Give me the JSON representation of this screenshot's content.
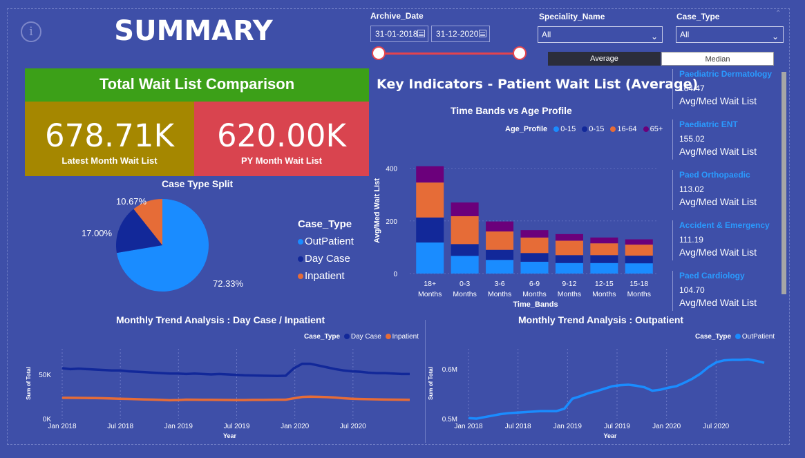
{
  "header": {
    "title": "SUMMARY"
  },
  "filters": {
    "archive_date_label": "Archive_Date",
    "start_date": "31-01-2018",
    "end_date": "31-12-2020",
    "speciality_label": "Speciality_Name",
    "speciality_value": "All",
    "case_type_label": "Case_Type",
    "case_type_value": "All",
    "toggle_average": "Average",
    "toggle_median": "Median"
  },
  "comparison": {
    "title": "Total Wait List Comparison",
    "latest_value": "678.71K",
    "latest_label": "Latest Month Wait List",
    "py_value": "620.00K",
    "py_label": "PY Month Wait List",
    "colors": {
      "header": "#3ca018",
      "latest": "#a58700",
      "py": "#d9444f"
    }
  },
  "key_indicators": {
    "title": "Key Indicators - Patient Wait List (Average)",
    "cards": [
      {
        "name": "Paediatric Dermatology",
        "value": "164.47",
        "label": "Avg/Med Wait List"
      },
      {
        "name": "Paediatric ENT",
        "value": "155.02",
        "label": "Avg/Med Wait List"
      },
      {
        "name": "Paed Orthopaedic",
        "value": "113.02",
        "label": "Avg/Med Wait List"
      },
      {
        "name": "Accident & Emergency",
        "value": "111.19",
        "label": "Avg/Med Wait List"
      },
      {
        "name": "Paed Cardiology",
        "value": "104.70",
        "label": "Avg/Med Wait List"
      }
    ]
  },
  "chart_data": [
    {
      "id": "pie",
      "type": "pie",
      "title": "Case Type Split",
      "legend_title": "Case_Type",
      "slices": [
        {
          "label": "OutPatient",
          "value": 72.33,
          "text": "72.33%",
          "color": "#1a8cff"
        },
        {
          "label": "Day Case",
          "value": 17.0,
          "text": "17.00%",
          "color": "#122899"
        },
        {
          "label": "Inpatient",
          "value": 10.67,
          "text": "10.67%",
          "color": "#e66c37"
        }
      ]
    },
    {
      "id": "bands",
      "type": "bar",
      "stacked": true,
      "title": "Time Bands vs Age Profile",
      "legend_title": "Age_Profile",
      "xlabel": "Time_Bands",
      "ylabel": "Avg/Med Wait List",
      "ylim": [
        0,
        420
      ],
      "yticks": [
        "0",
        "200",
        "400"
      ],
      "categories": [
        [
          "18+",
          "Months"
        ],
        [
          "0-3",
          "Months"
        ],
        [
          "3-6",
          "Months"
        ],
        [
          "6-9",
          "Months"
        ],
        [
          "9-12",
          "Months"
        ],
        [
          "12-15",
          "Months"
        ],
        [
          "15-18",
          "Months"
        ]
      ],
      "series": [
        {
          "name": "0-15",
          "color": "#1a8cff",
          "values": [
            118,
            67,
            52,
            45,
            40,
            40,
            39
          ]
        },
        {
          "name": "0-15",
          "color": "#122899",
          "values": [
            95,
            45,
            38,
            33,
            30,
            30,
            29
          ]
        },
        {
          "name": "16-64",
          "color": "#e66c37",
          "values": [
            133,
            106,
            70,
            59,
            55,
            45,
            42
          ]
        },
        {
          "name": "65+",
          "color": "#6b007b",
          "values": [
            62,
            52,
            38,
            28,
            25,
            22,
            20
          ]
        }
      ]
    },
    {
      "id": "trend_dc",
      "type": "line",
      "title": "Monthly Trend Analysis : Day Case / Inpatient",
      "legend_title": "Case_Type",
      "xlabel": "Year",
      "ylabel": "Sum of Total",
      "ylim": [
        0,
        75000
      ],
      "yticks": [
        "0K",
        "50K"
      ],
      "xticks": [
        "Jan 2018",
        "Jul 2018",
        "Jan 2019",
        "Jul 2019",
        "Jan 2020",
        "Jul 2020"
      ],
      "series": [
        {
          "name": "Day Case",
          "color": "#122899",
          "values": [
            57000,
            56000,
            56500,
            56000,
            55500,
            55000,
            54500,
            54500,
            53500,
            53000,
            52500,
            52000,
            51500,
            51000,
            51000,
            50500,
            51000,
            50500,
            50000,
            50500,
            50000,
            49500,
            49000,
            48800,
            48600,
            48400,
            48200,
            48500,
            57000,
            62000,
            62000,
            60000,
            58000,
            56000,
            54500,
            53500,
            53000,
            52000,
            51500,
            51500,
            51000,
            50500,
            50500
          ]
        },
        {
          "name": "Inpatient",
          "color": "#e66c37",
          "values": [
            23500,
            23500,
            23400,
            23300,
            23200,
            23000,
            22800,
            22500,
            22300,
            22000,
            21700,
            21500,
            21200,
            20800,
            21000,
            21500,
            21400,
            21300,
            21300,
            21200,
            21100,
            21000,
            21000,
            21200,
            21200,
            21300,
            21400,
            21400,
            23000,
            24500,
            24800,
            24600,
            24300,
            23800,
            23000,
            22500,
            22200,
            22000,
            21800,
            21600,
            21500,
            21400,
            21300
          ]
        }
      ]
    },
    {
      "id": "trend_op",
      "type": "line",
      "title": "Monthly Trend Analysis : Outpatient",
      "legend_title": "Case_Type",
      "xlabel": "Year",
      "ylabel": "Sum of Total",
      "ylim": [
        0.5,
        0.64
      ],
      "yticks": [
        "0.5M",
        "0.6M"
      ],
      "xticks": [
        "Jan 2018",
        "Jul 2018",
        "Jan 2019",
        "Jul 2019",
        "Jan 2020",
        "Jul 2020"
      ],
      "series": [
        {
          "name": "OutPatient",
          "color": "#1a8cff",
          "values": [
            0.501,
            0.5,
            0.503,
            0.506,
            0.509,
            0.511,
            0.512,
            0.513,
            0.514,
            0.515,
            0.515,
            0.515,
            0.52,
            0.54,
            0.545,
            0.551,
            0.555,
            0.56,
            0.565,
            0.567,
            0.568,
            0.566,
            0.563,
            0.556,
            0.558,
            0.562,
            0.565,
            0.572,
            0.58,
            0.59,
            0.603,
            0.613,
            0.617,
            0.618,
            0.618,
            0.619,
            0.616,
            0.612
          ]
        }
      ]
    }
  ]
}
